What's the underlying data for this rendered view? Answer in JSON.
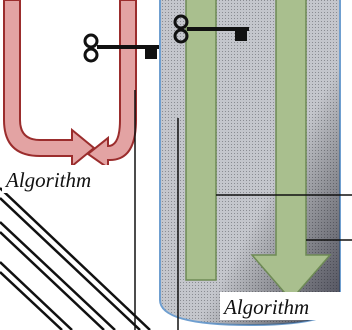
{
  "labels": {
    "left": "Algorithm",
    "right": "Algorithm"
  }
}
